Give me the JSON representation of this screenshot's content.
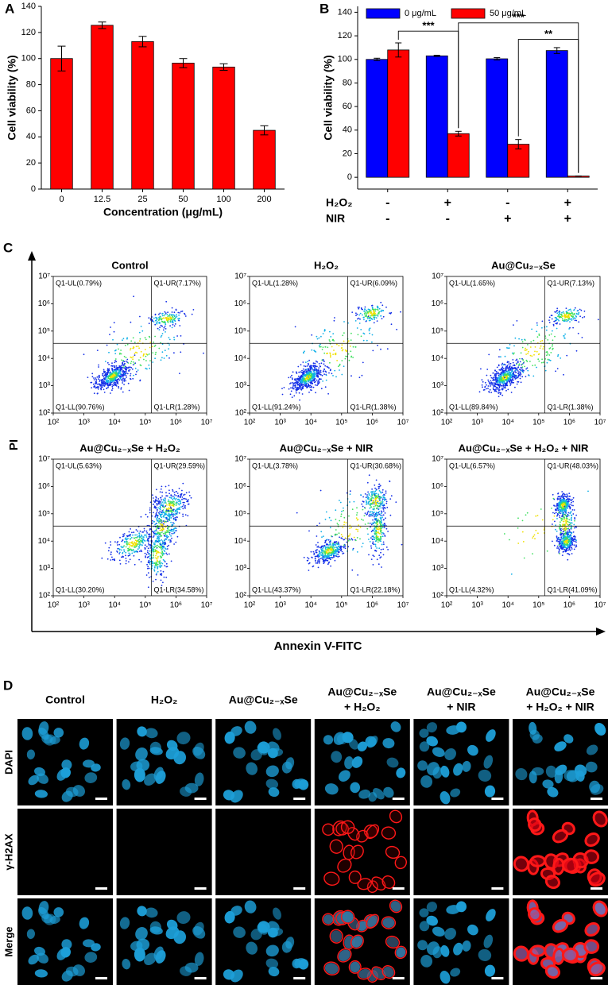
{
  "panel_labels": [
    "A",
    "B",
    "C",
    "D"
  ],
  "chart_data": [
    {
      "type": "bar",
      "x_label": "Concentration (μg/mL)",
      "y_label": "Cell viability (%)",
      "categories": [
        "0",
        "12.5",
        "25",
        "50",
        "100",
        "200"
      ],
      "values": [
        100,
        125.5,
        113,
        96.5,
        93.5,
        45
      ],
      "errors": [
        9.5,
        2.5,
        4,
        3.5,
        2.5,
        3.5
      ],
      "color": "#ff0000",
      "ylim": [
        0,
        140
      ],
      "yticks": [
        0,
        20,
        40,
        60,
        80,
        100,
        120,
        140
      ]
    },
    {
      "type": "grouped-bar",
      "y_label": "Cell viability (%)",
      "categories": [
        null,
        null,
        null,
        null
      ],
      "series": [
        {
          "name": "0 μg/mL",
          "color": "#0000ff",
          "values": [
            100,
            103,
            100.5,
            107.5
          ],
          "errors": [
            1,
            0.5,
            1,
            2.5
          ]
        },
        {
          "name": "50 μg/mL",
          "color": "#ff0000",
          "values": [
            108,
            37,
            28,
            1
          ],
          "errors": [
            6,
            2,
            4,
            0
          ]
        }
      ],
      "ylim": [
        -10,
        145
      ],
      "yticks": [
        0,
        20,
        40,
        60,
        80,
        100,
        120,
        140
      ],
      "annotations": [
        {
          "text": "***"
        },
        {
          "text": "***"
        },
        {
          "text": "**"
        }
      ],
      "treatment_rows": [
        {
          "label": "H₂O₂",
          "signs": [
            "-",
            "+",
            "-",
            "+"
          ]
        },
        {
          "label": "NIR",
          "signs": [
            "-",
            "-",
            "+",
            "+"
          ]
        }
      ]
    }
  ],
  "flow_cytometry": {
    "x_label": "Annexin V-FITC",
    "y_label": "PI",
    "log_scale": true,
    "xlim": [
      100,
      10000000
    ],
    "ylim": [
      100,
      10000000
    ],
    "xticks": [
      {
        "value": 100,
        "label": "10²"
      },
      {
        "value": 1000,
        "label": "10³"
      },
      {
        "value": 10000,
        "label": "10⁴"
      },
      {
        "value": 100000,
        "label": "10⁵"
      },
      {
        "value": 1000000,
        "label": "10⁶"
      },
      {
        "value": 10000000,
        "label": "10⁷"
      }
    ],
    "yticks": [
      {
        "value": 100,
        "label": "10²"
      },
      {
        "value": 1000,
        "label": "10³"
      },
      {
        "value": 10000,
        "label": "10⁴"
      },
      {
        "value": 100000,
        "label": "10⁵"
      },
      {
        "value": 1000000,
        "label": "10⁶"
      },
      {
        "value": 10000000,
        "label": "10⁷"
      }
    ],
    "plots": [
      {
        "title": "Control",
        "quadrants": [
          "Q1-UL(0.79%)",
          "Q1-UR(7.17%)",
          "Q1-LL(90.76%)",
          "Q1-LR(1.28%)"
        ]
      },
      {
        "title": "H₂O₂",
        "quadrants": [
          "Q1-UL(1.28%)",
          "Q1-UR(6.09%)",
          "Q1-LL(91.24%)",
          "Q1-LR(1.38%)"
        ]
      },
      {
        "title": "Au@Cu₂₋ₓSe",
        "quadrants": [
          "Q1-UL(1.65%)",
          "Q1-UR(7.13%)",
          "Q1-LL(89.84%)",
          "Q1-LR(1.38%)"
        ]
      },
      {
        "title": "Au@Cu₂₋ₓSe + H₂O₂",
        "quadrants": [
          "Q1-UL(5.63%)",
          "Q1-UR(29.59%)",
          "Q1-LL(30.20%)",
          "Q1-LR(34.58%)"
        ]
      },
      {
        "title": "Au@Cu₂₋ₓSe + NIR",
        "quadrants": [
          "Q1-UL(3.78%)",
          "Q1-UR(30.68%)",
          "Q1-LL(43.37%)",
          "Q1-LR(22.18%)"
        ]
      },
      {
        "title": "Au@Cu₂₋ₓSe + H₂O₂ + NIR",
        "quadrants": [
          "Q1-UL(6.57%)",
          "Q1-UR(48.03%)",
          "Q1-LL(4.32%)",
          "Q1-LR(41.09%)"
        ]
      }
    ]
  },
  "microscopy": {
    "columns": [
      [
        "Control"
      ],
      [
        "H₂O₂"
      ],
      [
        "Au@Cu₂₋ₓSe"
      ],
      [
        "Au@Cu₂₋ₓSe",
        "+ H₂O₂"
      ],
      [
        "Au@Cu₂₋ₓSe",
        "+ NIR"
      ],
      [
        "Au@Cu₂₋ₓSe",
        "+ H₂O₂ + NIR"
      ]
    ],
    "rows": [
      "DAPI",
      "γ-H2AX",
      "Merge"
    ]
  }
}
